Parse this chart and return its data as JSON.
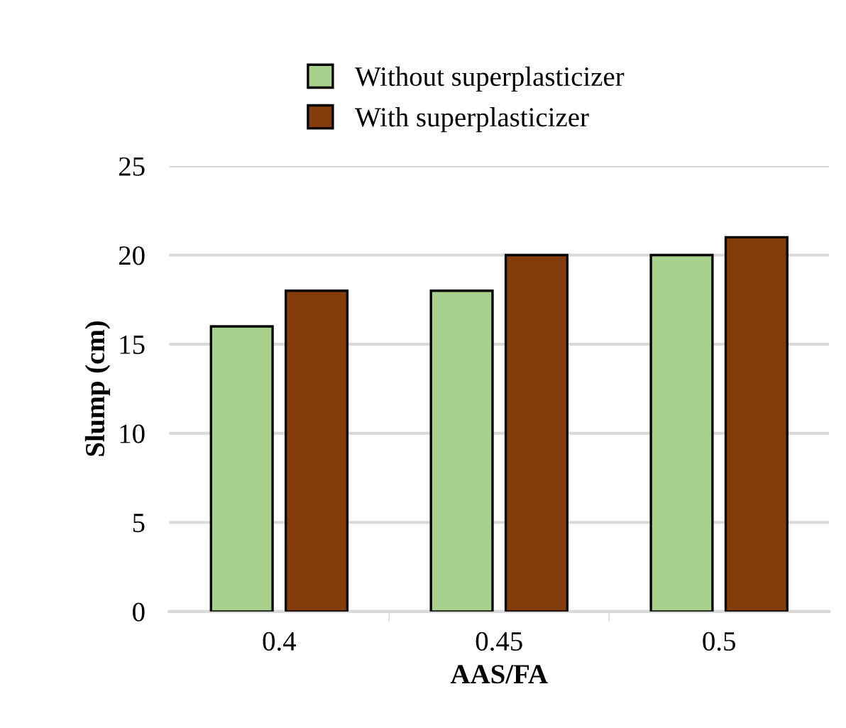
{
  "chart_data": {
    "type": "bar",
    "xlabel": "AAS/FA",
    "ylabel": "Slump (cm)",
    "categories": [
      "0.4",
      "0.45",
      "0.5"
    ],
    "series": [
      {
        "name": "Without superplasticizer",
        "color": "#a9d18e",
        "values": [
          16,
          18,
          20
        ]
      },
      {
        "name": "With superplasticizer",
        "color": "#843c0c",
        "values": [
          18,
          20,
          21
        ]
      }
    ],
    "ylim": [
      0,
      25
    ],
    "yticks": [
      0,
      5,
      10,
      15,
      20,
      25
    ],
    "grid": "y",
    "legend": "top"
  }
}
